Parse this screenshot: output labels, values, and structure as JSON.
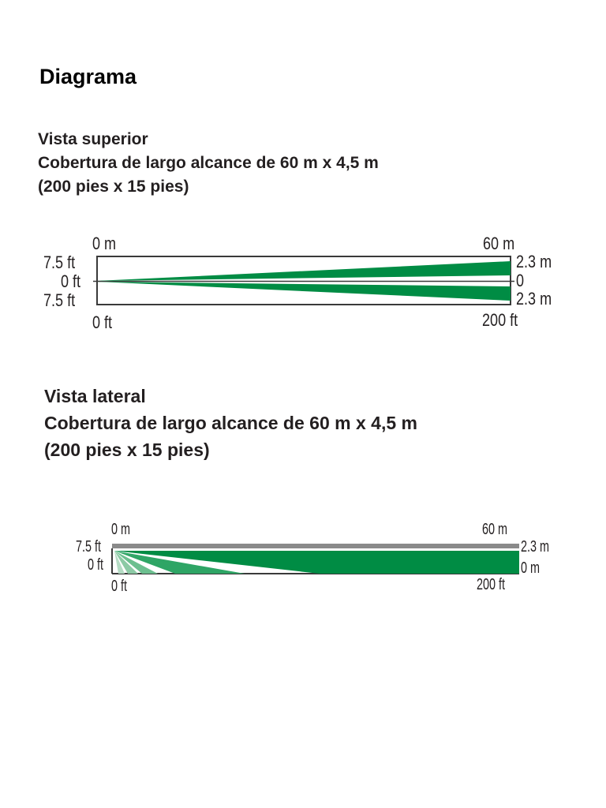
{
  "page_title": "Diagrama",
  "top_view": {
    "title": "Vista superior",
    "line1": "Cobertura de largo alcance de 60 m x 4,5 m",
    "line2": "(200 pies x 15 pies)",
    "labels": {
      "start_m": "0 m",
      "end_m": "60 m",
      "left_top": "7.5 ft",
      "left_mid": "0 ft",
      "left_bottom": "7.5 ft",
      "start_ft": "0 ft",
      "end_ft": "200 ft",
      "right_top": "2.3 m",
      "right_mid": "0",
      "right_bottom": "2.3 m"
    }
  },
  "side_view": {
    "title": "Vista lateral",
    "line1": "Cobertura de largo alcance de 60 m x 4,5 m",
    "line2": "(200 pies x 15 pies)",
    "labels": {
      "start_m": "0 m",
      "end_m": "60 m",
      "left_top": "7.5 ft",
      "left_bottom": "0 ft",
      "start_ft": "0 ft",
      "end_ft": "200 ft",
      "right_top": "2.3 m",
      "right_bottom": "0 m"
    }
  },
  "colors": {
    "beam": "#008c44",
    "beam_light1": "#2ea565",
    "beam_light2": "#6cbf8f",
    "beam_light3": "#b5dcc4",
    "outline": "#3a3a3a"
  }
}
